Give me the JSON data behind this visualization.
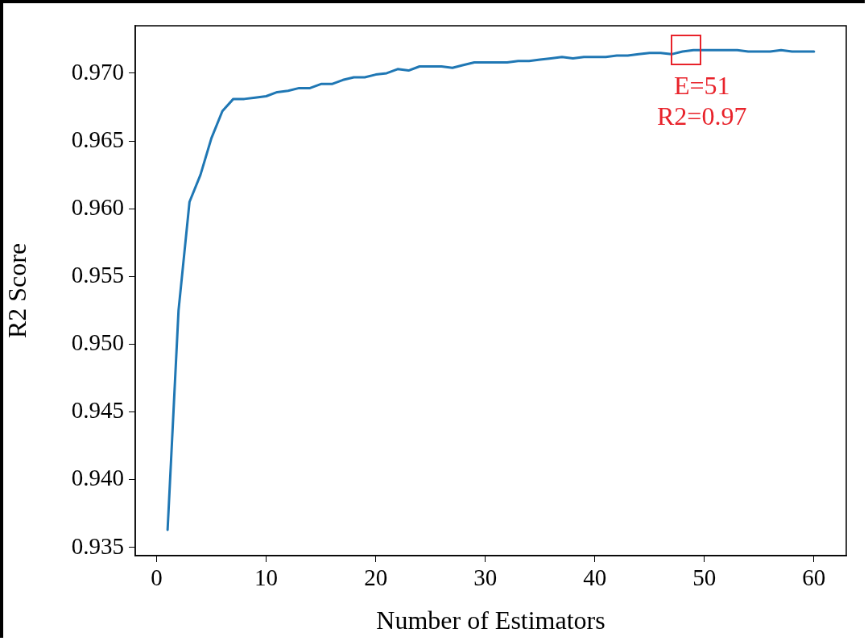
{
  "chart_data": {
    "type": "line",
    "xlabel": "Number of Estimators",
    "ylabel": "R2 Score",
    "x": [
      1,
      2,
      3,
      4,
      5,
      6,
      7,
      8,
      9,
      10,
      11,
      12,
      13,
      14,
      15,
      16,
      17,
      18,
      19,
      20,
      21,
      22,
      23,
      24,
      25,
      26,
      27,
      28,
      29,
      30,
      31,
      32,
      33,
      34,
      35,
      36,
      37,
      38,
      39,
      40,
      41,
      42,
      43,
      44,
      45,
      46,
      47,
      48,
      49,
      50,
      51,
      52,
      53,
      54,
      55,
      56,
      57,
      58,
      59,
      60
    ],
    "series": [
      {
        "color": "#1f77b4",
        "values": [
          0.9363,
          0.9525,
          0.9605,
          0.9625,
          0.9652,
          0.9672,
          0.9681,
          0.9681,
          0.9682,
          0.9683,
          0.9686,
          0.9687,
          0.9689,
          0.9689,
          0.9692,
          0.9692,
          0.9695,
          0.9697,
          0.9697,
          0.9699,
          0.97,
          0.9703,
          0.9702,
          0.9705,
          0.9705,
          0.9705,
          0.9704,
          0.9706,
          0.9708,
          0.9708,
          0.9708,
          0.9708,
          0.9709,
          0.9709,
          0.971,
          0.9711,
          0.9712,
          0.9711,
          0.9712,
          0.9712,
          0.9712,
          0.9713,
          0.9713,
          0.9714,
          0.9715,
          0.9715,
          0.9714,
          0.9716,
          0.9717,
          0.9717,
          0.9717,
          0.9717,
          0.9717,
          0.9716,
          0.9716,
          0.9716,
          0.9717,
          0.9716,
          0.9716,
          0.9716
        ]
      }
    ],
    "xlim": [
      -1.95,
      62.95
    ],
    "xticks": [
      0,
      10,
      20,
      30,
      40,
      50,
      60
    ],
    "ylim": [
      0.9344,
      0.9735
    ],
    "yticks": [
      {
        "value": 0.935,
        "label": "0.935"
      },
      {
        "value": 0.94,
        "label": "0.940"
      },
      {
        "value": 0.945,
        "label": "0.945"
      },
      {
        "value": 0.95,
        "label": "0.950"
      },
      {
        "value": 0.955,
        "label": "0.955"
      },
      {
        "value": 0.96,
        "label": "0.960"
      },
      {
        "value": 0.965,
        "label": "0.965"
      },
      {
        "value": 0.97,
        "label": "0.970"
      }
    ],
    "annotations": [
      {
        "text": "E=51\nR2=0.97",
        "x": 48.3,
        "y": 0.9717
      }
    ],
    "grid": false,
    "legend": false,
    "marker": "none",
    "line_style": "solid"
  }
}
